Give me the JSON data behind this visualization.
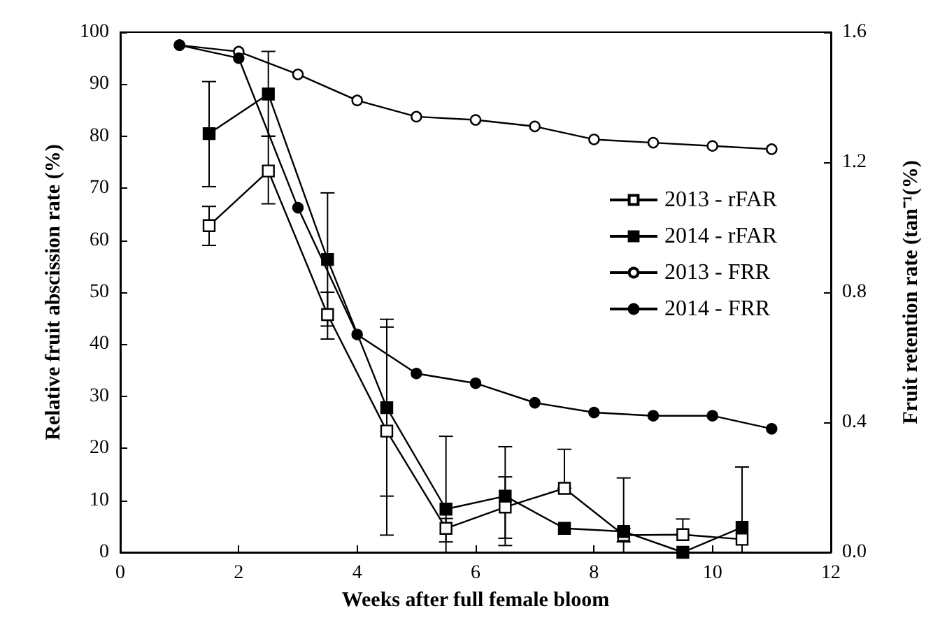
{
  "chart_data": {
    "type": "line",
    "xlabel": "Weeks after full female bloom",
    "ylabel": "Relative fruit abscission rate (%)",
    "y2label": "Fruit retention rate (tan⁻¹(%)",
    "xlim": [
      0,
      12
    ],
    "xticks": [
      0,
      2,
      4,
      6,
      8,
      10,
      12
    ],
    "ylim": [
      0,
      100
    ],
    "yticks": [
      0,
      10,
      20,
      30,
      40,
      50,
      60,
      70,
      80,
      90,
      100
    ],
    "y2lim": [
      0,
      1.6
    ],
    "y2ticks": [
      {
        "value": 0,
        "label": "0.0"
      },
      {
        "value": 0.4,
        "label": "0.4"
      },
      {
        "value": 0.8,
        "label": "0.8"
      },
      {
        "value": 1.2,
        "label": "1.2"
      },
      {
        "value": 1.6,
        "label": "1.6"
      }
    ],
    "legend": "right",
    "grid": false,
    "line_style": "solid",
    "series": [
      {
        "name": "2013 - rFAR",
        "color": "#ffffff",
        "marker": "square",
        "x": [
          1.5,
          2.5,
          3.5,
          4.5,
          5.5,
          6.5,
          7.5,
          8.5,
          9.5,
          10.5
        ],
        "values": [
          62.8,
          73.3,
          45.7,
          23.3,
          4.6,
          8.7,
          12.3,
          3.3,
          3.4,
          2.5
        ],
        "errors": [
          [
            59,
            66.5
          ],
          [
            67,
            80
          ],
          [
            41,
            50
          ],
          [
            3.3,
            43.3
          ],
          [
            2,
            6.5
          ],
          [
            2.7,
            14.5
          ],
          [
            12.3,
            19.8
          ],
          [
            2,
            4.6
          ],
          [
            3.4,
            6.4
          ],
          null
        ]
      },
      {
        "name": "2014 - rFAR",
        "color": "#000000",
        "marker": "square",
        "x": [
          1.5,
          2.5,
          3.5,
          4.5,
          5.5,
          6.5,
          7.5,
          8.5,
          9.5,
          10.5
        ],
        "values": [
          80.5,
          88.1,
          56.3,
          27.8,
          8.3,
          10.8,
          4.6,
          4.0,
          0,
          4.8
        ],
        "errors": [
          [
            70.3,
            90.5
          ],
          [
            80,
            96.3
          ],
          [
            43.5,
            69.1
          ],
          [
            10.8,
            44.8
          ],
          [
            0,
            22.3
          ],
          [
            1.3,
            20.3
          ],
          null,
          [
            0,
            14.3
          ],
          null,
          [
            0,
            16.4
          ]
        ]
      },
      {
        "name": "2013 - FRR",
        "color": "#ffffff",
        "marker": "circle",
        "axis": "y2",
        "x": [
          1,
          2,
          3,
          4,
          5,
          6,
          7,
          8,
          9,
          10,
          11
        ],
        "values": [
          1.56,
          1.54,
          1.47,
          1.39,
          1.34,
          1.33,
          1.31,
          1.27,
          1.26,
          1.25,
          1.24
        ]
      },
      {
        "name": "2014 - FRR",
        "color": "#000000",
        "marker": "circle",
        "axis": "y2",
        "x": [
          1,
          2,
          3,
          4,
          5,
          6,
          7,
          8,
          9,
          10,
          11
        ],
        "values": [
          1.56,
          1.52,
          1.06,
          0.67,
          0.55,
          0.52,
          0.46,
          0.43,
          0.42,
          0.42,
          0.38
        ]
      }
    ]
  }
}
